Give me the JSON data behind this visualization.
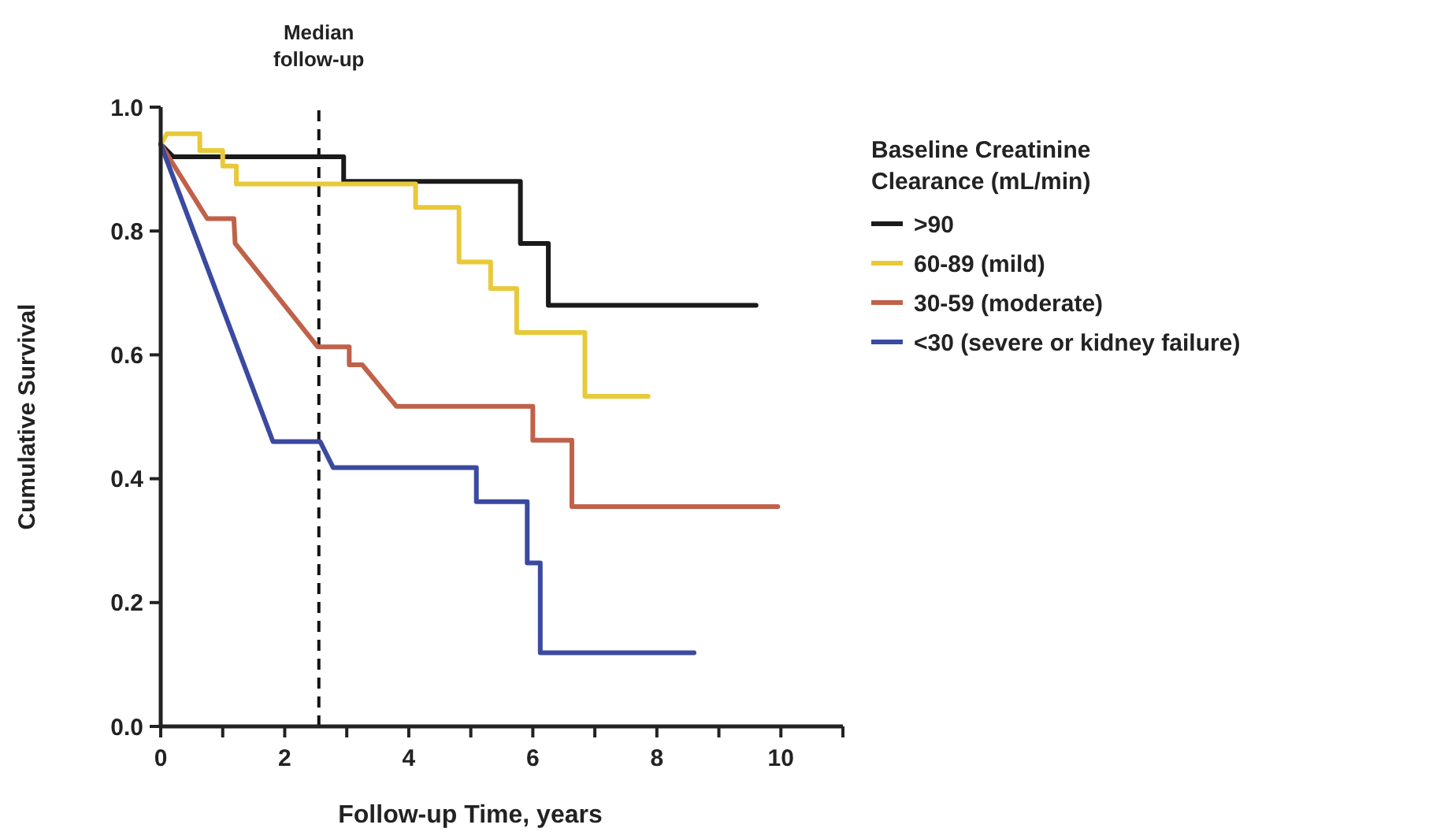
{
  "chart_data": {
    "type": "line",
    "xlabel": "Follow-up Time, years",
    "ylabel": "Cumulative Survival",
    "legend_title": "Baseline Creatinine Clearance (mL/min)",
    "legend": "right",
    "grid": false,
    "marker": "none",
    "line_style": "solid",
    "xlim": [
      0,
      11
    ],
    "xticks": [
      0,
      {
        "value": 1,
        "label": null
      },
      2,
      {
        "value": 3,
        "label": null
      },
      4,
      {
        "value": 5,
        "label": null
      },
      6,
      {
        "value": 7,
        "label": null
      },
      8,
      {
        "value": 9,
        "label": null
      },
      10,
      {
        "value": 11,
        "label": null
      }
    ],
    "ylim": [
      0,
      1
    ],
    "yticks": [
      {
        "value": 0,
        "label": "0.0"
      },
      0.2,
      0.4,
      0.6,
      0.8,
      {
        "value": 1,
        "label": "1.0"
      }
    ],
    "ref_lines": [
      {
        "axis": "x",
        "value": 2.55,
        "label": "Median follow-up",
        "line_style": "dashed",
        "color": "#111111"
      }
    ],
    "series": [
      {
        "name": ">90",
        "color": "#1a1a1a",
        "x": [
          0,
          0.2,
          2.95,
          2.95,
          5.8,
          5.8,
          6.25,
          6.25,
          9.6
        ],
        "values": [
          0.94,
          0.92,
          0.92,
          0.88,
          0.88,
          0.78,
          0.78,
          0.68,
          0.68
        ]
      },
      {
        "name": "60-89 (mild)",
        "color": "#e8c93a",
        "x": [
          0,
          0.1,
          0.63,
          0.63,
          1.0,
          1.0,
          1.22,
          1.22,
          4.11,
          4.11,
          4.81,
          4.81,
          5.32,
          5.32,
          5.74,
          5.74,
          6.84,
          6.84,
          7.86
        ],
        "values": [
          0.94,
          0.957,
          0.957,
          0.93,
          0.93,
          0.905,
          0.905,
          0.876,
          0.876,
          0.838,
          0.838,
          0.75,
          0.75,
          0.707,
          0.707,
          0.636,
          0.636,
          0.533,
          0.533
        ]
      },
      {
        "name": "30-59 (moderate)",
        "color": "#c0614a",
        "x": [
          0,
          0.75,
          1.18,
          1.2,
          2.53,
          3.04,
          3.04,
          3.25,
          3.8,
          6.0,
          6.0,
          6.63,
          6.63,
          9.95
        ],
        "values": [
          0.94,
          0.82,
          0.82,
          0.78,
          0.613,
          0.613,
          0.584,
          0.584,
          0.517,
          0.517,
          0.462,
          0.462,
          0.355,
          0.355
        ]
      },
      {
        "name": "<30 (severe or kidney failure)",
        "color": "#3a4aa0",
        "x": [
          0,
          1.81,
          2.57,
          2.78,
          5.09,
          5.09,
          5.91,
          5.91,
          6.12,
          6.12,
          8.6
        ],
        "values": [
          0.94,
          0.46,
          0.46,
          0.418,
          0.418,
          0.363,
          0.363,
          0.264,
          0.264,
          0.119,
          0.119
        ]
      }
    ]
  }
}
